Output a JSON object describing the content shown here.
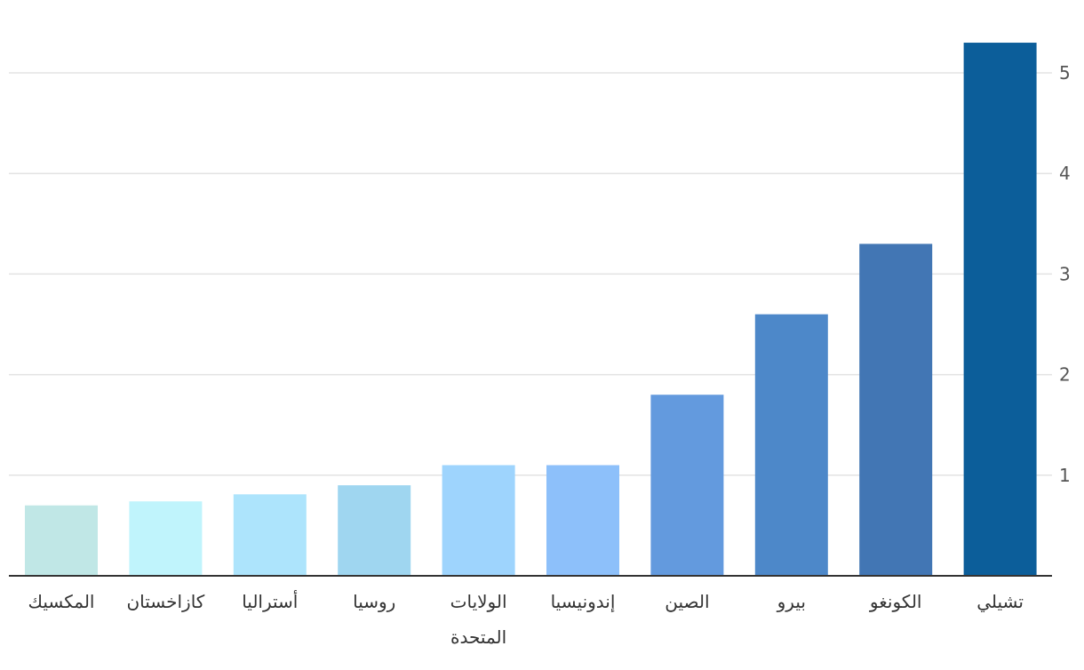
{
  "chart_data": {
    "type": "bar",
    "categories": [
      "المكسيك",
      "كازاخستان",
      "أستراليا",
      "روسيا",
      "الولايات المتحدة",
      "إندونيسيا",
      "الصين",
      "بيرو",
      "الكونغو",
      "تشيلي"
    ],
    "category_lines": [
      [
        "المكسيك"
      ],
      [
        "كازاخستان"
      ],
      [
        "أستراليا"
      ],
      [
        "روسيا"
      ],
      [
        "الولايات",
        "المتحدة"
      ],
      [
        "إندونيسيا"
      ],
      [
        "الصين"
      ],
      [
        "بيرو"
      ],
      [
        "الكونغو"
      ],
      [
        "تشيلي"
      ]
    ],
    "values": [
      0.7,
      0.74,
      0.81,
      0.9,
      1.1,
      1.1,
      1.8,
      2.6,
      3.3,
      5.3
    ],
    "colors": [
      "#c0e7e6",
      "#c0f4fc",
      "#ade4fc",
      "#9fd6f0",
      "#9ed4fd",
      "#8dc0fa",
      "#639ade",
      "#4d88c9",
      "#4276b4",
      "#0c5e9a"
    ],
    "y_ticks": [
      1,
      2,
      3,
      4,
      5
    ],
    "ylim": [
      0,
      5.3
    ],
    "yaxis_position": "right",
    "grid": true,
    "title": "",
    "xlabel": "",
    "ylabel": ""
  }
}
